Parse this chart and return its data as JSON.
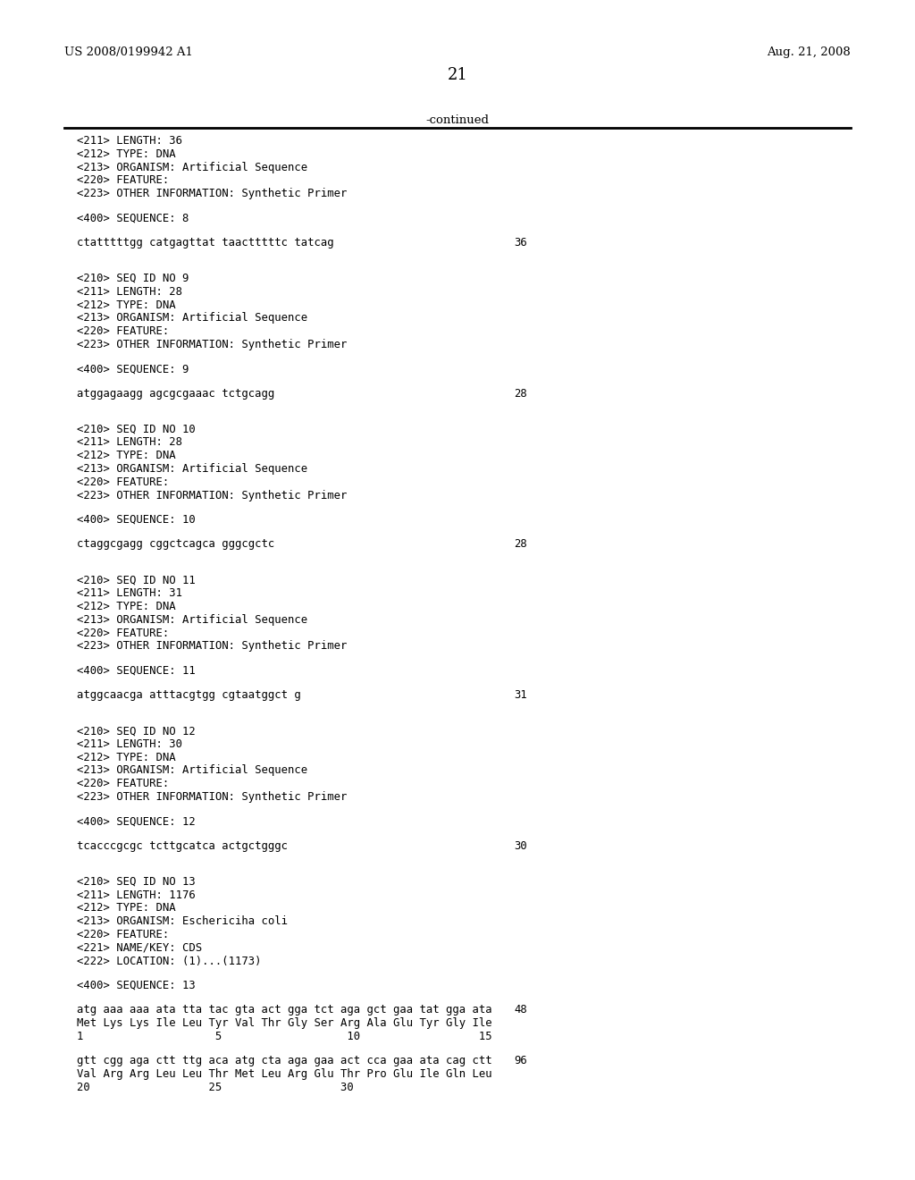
{
  "header_left": "US 2008/0199942 A1",
  "header_right": "Aug. 21, 2008",
  "page_number": "21",
  "continued_text": "-continued",
  "background_color": "#ffffff",
  "text_color": "#000000",
  "line_color": "#000000",
  "content": [
    {
      "type": "meta",
      "text": "<211> LENGTH: 36"
    },
    {
      "type": "meta",
      "text": "<212> TYPE: DNA"
    },
    {
      "type": "meta",
      "text": "<213> ORGANISM: Artificial Sequence"
    },
    {
      "type": "meta",
      "text": "<220> FEATURE:"
    },
    {
      "type": "meta",
      "text": "<223> OTHER INFORMATION: Synthetic Primer"
    },
    {
      "type": "blank"
    },
    {
      "type": "meta",
      "text": "<400> SEQUENCE: 8"
    },
    {
      "type": "blank"
    },
    {
      "type": "seq",
      "text": "ctatttttgg catgagttat taactttttc tatcag",
      "num": "36"
    },
    {
      "type": "blank"
    },
    {
      "type": "blank"
    },
    {
      "type": "meta",
      "text": "<210> SEQ ID NO 9"
    },
    {
      "type": "meta",
      "text": "<211> LENGTH: 28"
    },
    {
      "type": "meta",
      "text": "<212> TYPE: DNA"
    },
    {
      "type": "meta",
      "text": "<213> ORGANISM: Artificial Sequence"
    },
    {
      "type": "meta",
      "text": "<220> FEATURE:"
    },
    {
      "type": "meta",
      "text": "<223> OTHER INFORMATION: Synthetic Primer"
    },
    {
      "type": "blank"
    },
    {
      "type": "meta",
      "text": "<400> SEQUENCE: 9"
    },
    {
      "type": "blank"
    },
    {
      "type": "seq",
      "text": "atggagaagg agcgcgaaac tctgcagg",
      "num": "28"
    },
    {
      "type": "blank"
    },
    {
      "type": "blank"
    },
    {
      "type": "meta",
      "text": "<210> SEQ ID NO 10"
    },
    {
      "type": "meta",
      "text": "<211> LENGTH: 28"
    },
    {
      "type": "meta",
      "text": "<212> TYPE: DNA"
    },
    {
      "type": "meta",
      "text": "<213> ORGANISM: Artificial Sequence"
    },
    {
      "type": "meta",
      "text": "<220> FEATURE:"
    },
    {
      "type": "meta",
      "text": "<223> OTHER INFORMATION: Synthetic Primer"
    },
    {
      "type": "blank"
    },
    {
      "type": "meta",
      "text": "<400> SEQUENCE: 10"
    },
    {
      "type": "blank"
    },
    {
      "type": "seq",
      "text": "ctaggcgagg cggctcagca gggcgctc",
      "num": "28"
    },
    {
      "type": "blank"
    },
    {
      "type": "blank"
    },
    {
      "type": "meta",
      "text": "<210> SEQ ID NO 11"
    },
    {
      "type": "meta",
      "text": "<211> LENGTH: 31"
    },
    {
      "type": "meta",
      "text": "<212> TYPE: DNA"
    },
    {
      "type": "meta",
      "text": "<213> ORGANISM: Artificial Sequence"
    },
    {
      "type": "meta",
      "text": "<220> FEATURE:"
    },
    {
      "type": "meta",
      "text": "<223> OTHER INFORMATION: Synthetic Primer"
    },
    {
      "type": "blank"
    },
    {
      "type": "meta",
      "text": "<400> SEQUENCE: 11"
    },
    {
      "type": "blank"
    },
    {
      "type": "seq",
      "text": "atggcaacga atttacgtgg cgtaatggct g",
      "num": "31"
    },
    {
      "type": "blank"
    },
    {
      "type": "blank"
    },
    {
      "type": "meta",
      "text": "<210> SEQ ID NO 12"
    },
    {
      "type": "meta",
      "text": "<211> LENGTH: 30"
    },
    {
      "type": "meta",
      "text": "<212> TYPE: DNA"
    },
    {
      "type": "meta",
      "text": "<213> ORGANISM: Artificial Sequence"
    },
    {
      "type": "meta",
      "text": "<220> FEATURE:"
    },
    {
      "type": "meta",
      "text": "<223> OTHER INFORMATION: Synthetic Primer"
    },
    {
      "type": "blank"
    },
    {
      "type": "meta",
      "text": "<400> SEQUENCE: 12"
    },
    {
      "type": "blank"
    },
    {
      "type": "seq",
      "text": "tcacccgcgc tcttgcatca actgctgggc",
      "num": "30"
    },
    {
      "type": "blank"
    },
    {
      "type": "blank"
    },
    {
      "type": "meta",
      "text": "<210> SEQ ID NO 13"
    },
    {
      "type": "meta",
      "text": "<211> LENGTH: 1176"
    },
    {
      "type": "meta",
      "text": "<212> TYPE: DNA"
    },
    {
      "type": "meta",
      "text": "<213> ORGANISM: Eschericiha coli"
    },
    {
      "type": "meta",
      "text": "<220> FEATURE:"
    },
    {
      "type": "meta",
      "text": "<221> NAME/KEY: CDS"
    },
    {
      "type": "meta",
      "text": "<222> LOCATION: (1)...(1173)"
    },
    {
      "type": "blank"
    },
    {
      "type": "meta",
      "text": "<400> SEQUENCE: 13"
    },
    {
      "type": "blank"
    },
    {
      "type": "seq2",
      "dna": "atg aaa aaa ata tta tac gta act gga tct aga gct gaa tat gga ata",
      "num": "48",
      "aa": "Met Lys Lys Ile Leu Tyr Val Thr Gly Ser Arg Ala Glu Tyr Gly Ile",
      "pos": "1                    5                   10                  15"
    },
    {
      "type": "blank"
    },
    {
      "type": "seq2",
      "dna": "gtt cgg aga ctt ttg aca atg cta aga gaa act cca gaa ata cag ctt",
      "num": "96",
      "aa": "Val Arg Arg Leu Leu Thr Met Leu Arg Glu Thr Pro Glu Ile Gln Leu",
      "pos": "20                  25                  30"
    }
  ]
}
